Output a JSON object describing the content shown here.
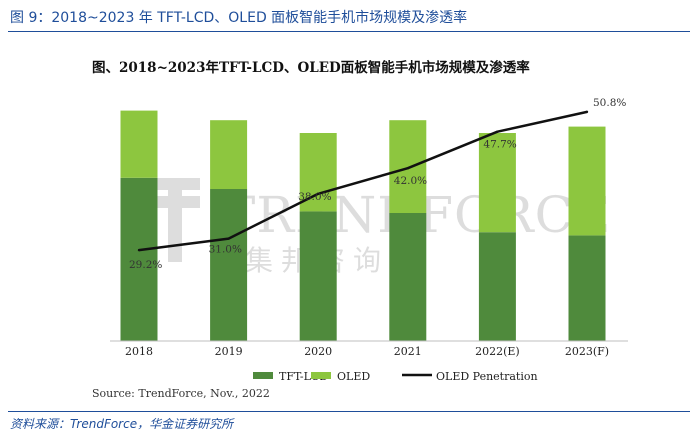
{
  "header": {
    "caption": "图 9：2018~2023 年 TFT-LCD、OLED 面板智能手机市场规模及渗透率"
  },
  "footer": {
    "source": "资料来源：TrendForce，华金证券研究所"
  },
  "watermark": {
    "brand": "TRENDFORCE",
    "chinese": "集邦咨询"
  },
  "colors": {
    "tft_lcd": "#4f8a3c",
    "oled": "#8dc63f",
    "line": "#111111",
    "accent": "#1f4e9a"
  },
  "chart_data": {
    "type": "bar",
    "title": "图、2018~2023年TFT-LCD、OLED面板智能手机市场规模及渗透率",
    "categories": [
      "2018",
      "2019",
      "2020",
      "2021",
      "2022(E)",
      "2023(F)"
    ],
    "series": [
      {
        "name": "TFT-LCD",
        "kind": "stacked-bar",
        "values": [
          1.02,
          0.95,
          0.81,
          0.8,
          0.68,
          0.66
        ]
      },
      {
        "name": "OLED",
        "kind": "stacked-bar",
        "values": [
          0.42,
          0.43,
          0.49,
          0.58,
          0.62,
          0.68
        ]
      },
      {
        "name": "OLED Penetration",
        "kind": "line",
        "values": [
          29.2,
          31.0,
          38.0,
          42.0,
          47.7,
          50.8
        ],
        "labels": [
          "29.2%",
          "31.0%",
          "38.0%",
          "42.0%",
          "47.7%",
          "50.8%"
        ]
      }
    ],
    "bar_ylim": [
      0,
      1.6
    ],
    "line_ylim": [
      15,
      55
    ],
    "xlabel": "",
    "ylabel": "",
    "grid": false,
    "legend_position": "bottom",
    "source_note": "Source: TrendForce, Nov., 2022"
  }
}
